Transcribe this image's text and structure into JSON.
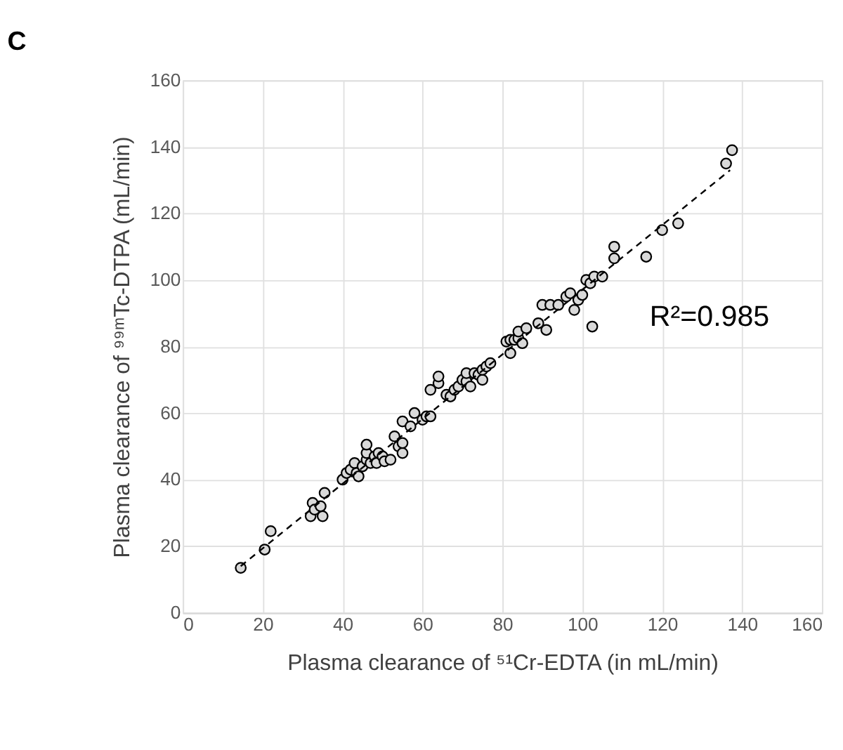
{
  "chart_data": {
    "type": "scatter",
    "title": "C",
    "xlabel": "Plasma clearance of ⁵¹Cr-EDTA (in mL/min)",
    "ylabel": "Plasma clearance of ⁹⁹ᵐTc-DTPA (mL/min)",
    "xlim": [
      0,
      160
    ],
    "xticks": [
      0,
      20,
      40,
      60,
      80,
      100,
      120,
      140,
      160
    ],
    "ylim": [
      0,
      160
    ],
    "yticks": [
      0,
      20,
      40,
      60,
      80,
      100,
      120,
      140,
      160
    ],
    "grid": true,
    "marker": "circle",
    "annotations": [
      "R²=0.985"
    ],
    "series": [
      {
        "color": "#d9d9d9",
        "x": [
          14.5,
          20.5,
          22,
          32,
          32.5,
          33,
          34.5,
          35,
          35.5,
          40,
          41,
          42,
          43,
          43.5,
          44,
          45,
          46,
          46,
          46,
          47,
          48,
          48.5,
          49,
          50,
          50.5,
          52,
          53,
          54,
          55,
          55,
          55,
          57,
          58,
          60,
          61,
          62,
          62,
          64,
          64,
          66,
          67,
          68,
          69,
          70,
          71,
          71,
          72,
          73,
          74,
          75,
          75,
          76,
          77,
          81,
          82,
          82,
          83,
          84,
          84,
          85,
          86,
          89,
          90,
          91,
          92,
          94,
          96,
          97,
          98,
          99,
          100,
          101,
          102,
          102.5,
          103,
          105,
          108,
          108,
          116,
          120,
          124,
          136,
          137.5
        ],
        "values": [
          13.5,
          19,
          24.5,
          29,
          33,
          31,
          32,
          29,
          36,
          40,
          42,
          43,
          45,
          42,
          41,
          44,
          46,
          48,
          50.5,
          45,
          47,
          45,
          48,
          47,
          45.5,
          46,
          53,
          50,
          48,
          57.5,
          51,
          56,
          60,
          58,
          59,
          67,
          59,
          69,
          71,
          65.5,
          65,
          67,
          68,
          70,
          69.5,
          72,
          68,
          72,
          71.5,
          70,
          73,
          74,
          75,
          81.5,
          78,
          82,
          82,
          82.5,
          84.5,
          81,
          85.5,
          87,
          92.5,
          85,
          92.5,
          92.5,
          95,
          96,
          91,
          94,
          95.5,
          100,
          99,
          86,
          101,
          101,
          110,
          106.5,
          107,
          115,
          117,
          135,
          139
        ]
      },
      {
        "type": "line",
        "color": "#000000",
        "line_style": "dashed",
        "marker": "none",
        "x": [
          14.5,
          137
        ],
        "values": [
          14,
          133
        ]
      }
    ]
  }
}
